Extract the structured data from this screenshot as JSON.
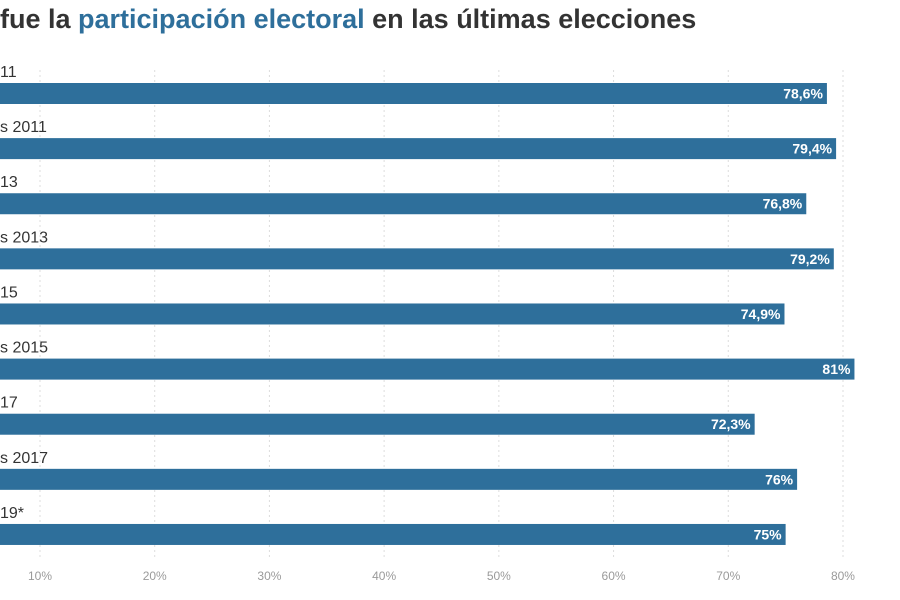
{
  "title": {
    "before": "fue la ",
    "highlight": "participación electoral",
    "after": " en las últimas elecciones"
  },
  "colors": {
    "bar": "#2e6f9b",
    "highlight": "#2e6f9b",
    "text": "#333333",
    "grid": "#dddddd",
    "tick": "#9a9a9a"
  },
  "chart_data": {
    "type": "bar",
    "orientation": "horizontal",
    "categories": [
      "11",
      "s 2011",
      "13",
      "s 2013",
      "15",
      "s 2015",
      "17",
      "s 2017",
      "19*"
    ],
    "values": [
      78.6,
      79.4,
      76.8,
      79.2,
      74.9,
      81,
      72.3,
      76,
      75
    ],
    "value_labels": [
      "78,6%",
      "79,4%",
      "76,8%",
      "79,2%",
      "74,9%",
      "81%",
      "72,3%",
      "76%",
      "75%"
    ],
    "xticks": [
      "10%",
      "20%",
      "30%",
      "40%",
      "50%",
      "60%",
      "70%",
      "80%"
    ],
    "xtick_values": [
      10,
      20,
      30,
      40,
      50,
      60,
      70,
      80
    ],
    "grid": true
  }
}
